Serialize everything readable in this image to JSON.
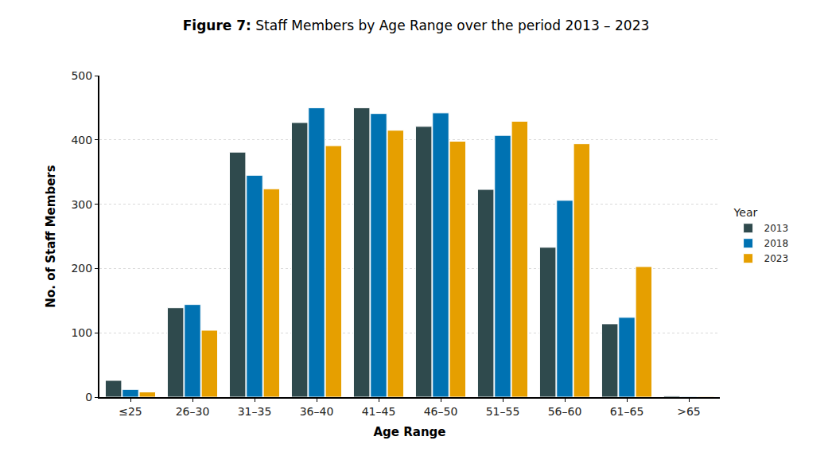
{
  "chart_data": {
    "type": "bar",
    "title": "Figure 7: Staff Members by Age Range over the period 2013 – 2023",
    "x_label": "Age Range",
    "y_label": "No. of Staff Members",
    "legend_title": "Year",
    "legend": "right",
    "grid": true,
    "categories": [
      "≤25",
      "26–30",
      "31–35",
      "36–40",
      "41–45",
      "46–50",
      "51–55",
      "56–60",
      "61–65",
      ">65"
    ],
    "series": [
      {
        "name": "2013",
        "color": "#2f4a4d",
        "values": [
          26,
          139,
          381,
          427,
          450,
          421,
          323,
          233,
          114,
          2
        ]
      },
      {
        "name": "2018",
        "color": "#0072b2",
        "values": [
          12,
          144,
          345,
          450,
          441,
          442,
          407,
          306,
          124,
          1
        ]
      },
      {
        "name": "2023",
        "color": "#e69f00",
        "values": [
          8,
          104,
          324,
          391,
          415,
          398,
          429,
          394,
          203,
          1
        ]
      }
    ],
    "ylim": [
      0,
      500
    ],
    "yticks": [
      0,
      100,
      200,
      300,
      400,
      500
    ]
  }
}
